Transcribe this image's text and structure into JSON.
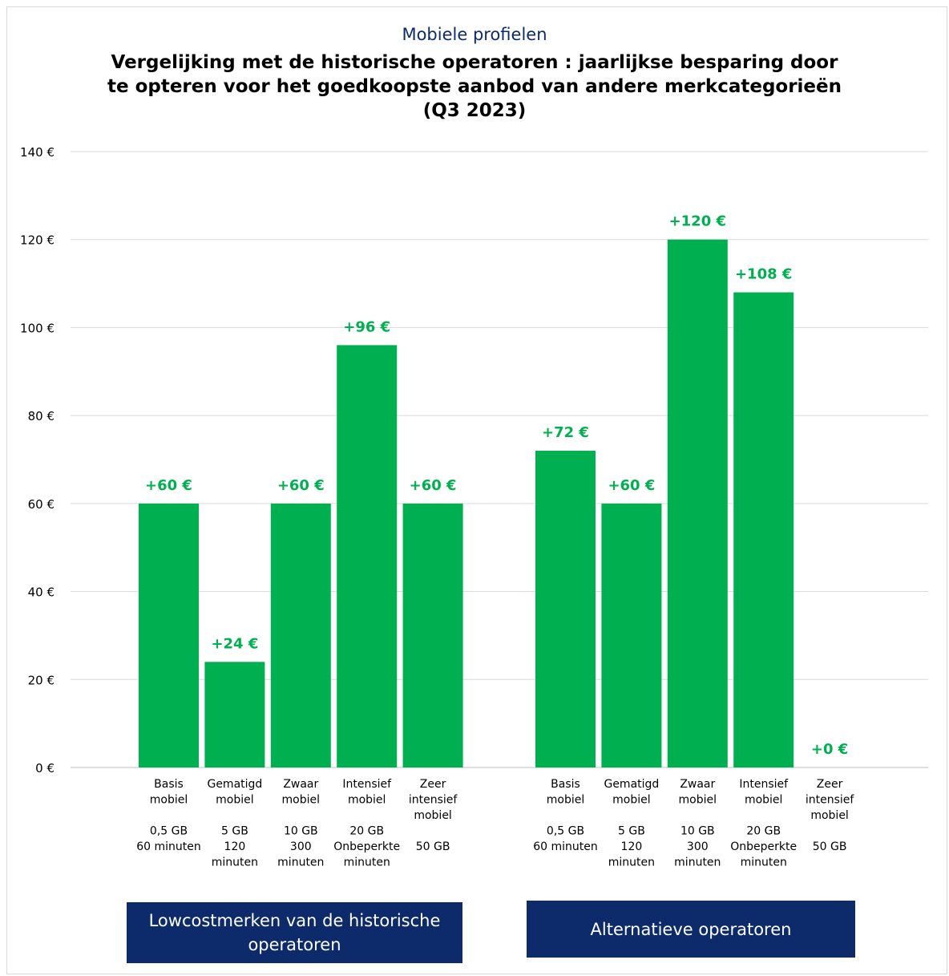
{
  "chart_data": {
    "type": "bar",
    "subtitle": "Mobiele profielen",
    "title": "Vergelijking met de historische operatoren : jaarlijkse besparing door te opteren voor het goedkoopste aanbod van andere merkcategorieën (Q3 2023)",
    "ylim": [
      0,
      140
    ],
    "yticks": [
      0,
      20,
      40,
      60,
      80,
      100,
      120,
      140
    ],
    "ytick_suffix": " €",
    "grid": true,
    "bar_color": "#00b050",
    "label_color": "#00b050",
    "groups": [
      {
        "name": "Lowcostmerken van de historische operatoren",
        "categories": [
          {
            "label": [
              "Basis",
              "mobiel",
              "",
              "0,5 GB",
              "60 minuten"
            ],
            "value": 60,
            "value_label": "+60 €"
          },
          {
            "label": [
              "Gematigd",
              "mobiel",
              "",
              "5 GB",
              "120",
              "minuten"
            ],
            "value": 24,
            "value_label": "+24 €"
          },
          {
            "label": [
              "Zwaar",
              "mobiel",
              "",
              "10 GB",
              "300",
              "minuten"
            ],
            "value": 60,
            "value_label": "+60 €"
          },
          {
            "label": [
              "Intensief",
              "mobiel",
              "",
              "20 GB",
              "Onbeperkte",
              "minuten"
            ],
            "value": 96,
            "value_label": "+96 €"
          },
          {
            "label": [
              "Zeer",
              "intensief",
              "mobiel",
              "",
              "50 GB"
            ],
            "value": 60,
            "value_label": "+60 €"
          }
        ]
      },
      {
        "name": "Alternatieve operatoren",
        "categories": [
          {
            "label": [
              "Basis",
              "mobiel",
              "",
              "0,5 GB",
              "60 minuten"
            ],
            "value": 72,
            "value_label": "+72 €"
          },
          {
            "label": [
              "Gematigd",
              "mobiel",
              "",
              "5 GB",
              "120",
              "minuten"
            ],
            "value": 60,
            "value_label": "+60 €"
          },
          {
            "label": [
              "Zwaar",
              "mobiel",
              "",
              "10 GB",
              "300",
              "minuten"
            ],
            "value": 120,
            "value_label": "+120 €"
          },
          {
            "label": [
              "Intensief",
              "mobiel",
              "",
              "20 GB",
              "Onbeperkte",
              "minuten"
            ],
            "value": 108,
            "value_label": "+108 €"
          },
          {
            "label": [
              "Zeer",
              "intensief",
              "mobiel",
              "",
              "50 GB"
            ],
            "value": 0,
            "value_label": "+0 €"
          }
        ]
      }
    ]
  }
}
